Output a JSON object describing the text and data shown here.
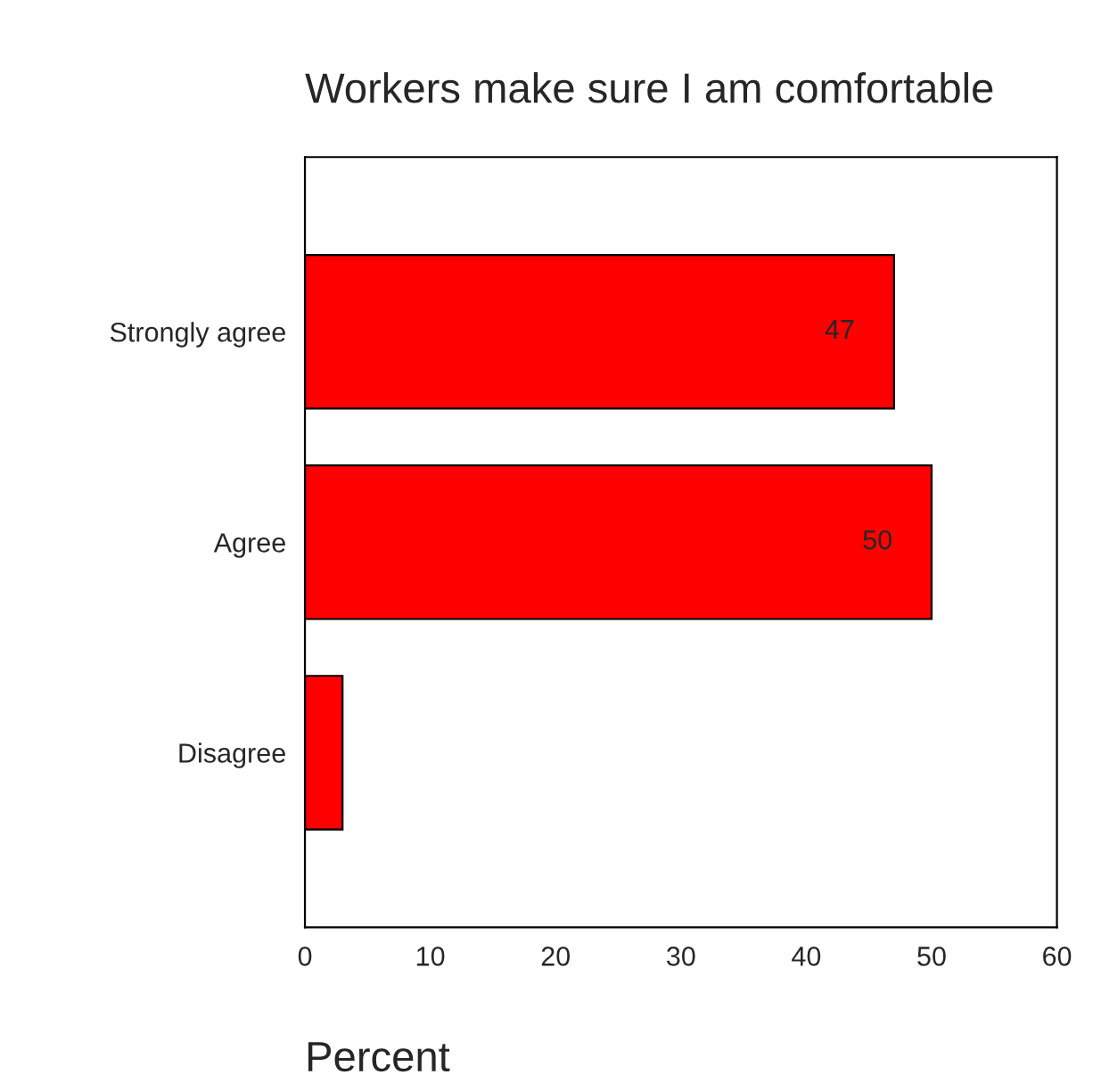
{
  "chart_data": {
    "type": "bar",
    "orientation": "horizontal",
    "title": "Workers make sure I am comfortable",
    "xlabel": "Percent",
    "categories": [
      "Strongly agree",
      "Agree",
      "Disagree"
    ],
    "values": [
      47,
      50,
      3
    ],
    "value_labels": [
      "47",
      "50",
      null
    ],
    "color": "#ff0000",
    "xlim": [
      0,
      60
    ],
    "xticks": [
      0,
      10,
      20,
      30,
      40,
      50,
      60
    ],
    "grid": false,
    "legend": false
  }
}
